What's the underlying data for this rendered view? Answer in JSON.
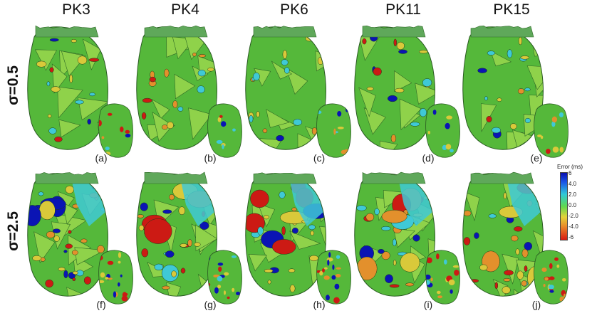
{
  "columns": [
    "PK3",
    "PK4",
    "PK6",
    "PK11",
    "PK15"
  ],
  "rows": [
    "σ=0.5",
    "σ=2.5"
  ],
  "panel_labels": [
    "(a)",
    "(b)",
    "(c)",
    "(d)",
    "(e)",
    "(f)",
    "(g)",
    "(h)",
    "(i)",
    "(j)"
  ],
  "legend": {
    "title": "Error (ms)",
    "ticks": [
      "6",
      "4.0",
      "2.0",
      "0.0",
      "-2.0",
      "-4.0",
      "-6"
    ]
  },
  "colors": {
    "blue": "#0a14b4",
    "cyan": "#3fc9d6",
    "green": "#55b83a",
    "light_green": "#8fd24a",
    "yellow": "#d9c93a",
    "orange": "#e3902c",
    "red": "#cc1a14",
    "top_rim": "#5fa85a"
  }
}
